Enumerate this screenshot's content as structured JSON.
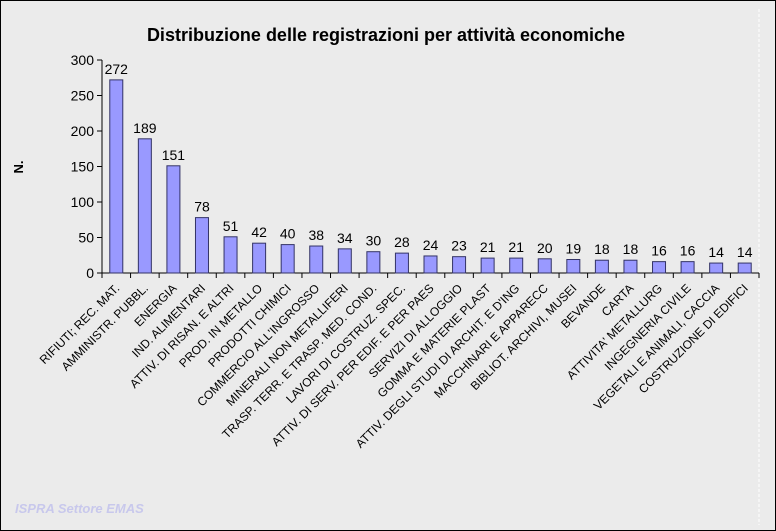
{
  "watermark": "ISPRA Settore EMAS",
  "colors": {
    "bar_fill": "#9999ff",
    "bar_stroke": "#333366",
    "background": "#ebebeb"
  },
  "chart_data": {
    "type": "bar",
    "title": "Distribuzione delle registrazioni per attività economiche",
    "xlabel": "",
    "ylabel": "N.",
    "ylim": [
      0,
      300
    ],
    "yticks": [
      0,
      50,
      100,
      150,
      200,
      250,
      300
    ],
    "grid": false,
    "categories": [
      "RIFIUTI; REC. MAT.",
      "AMMINISTR. PUBBL.",
      "ENERGIA",
      "IND. ALIMENTARI",
      "ATTIV. DI RISAN. E ALTRI",
      "PROD. IN METALLO",
      "PRODOTTI CHIMICI",
      "COMMERCIO ALL'INGROSSO",
      "MINERALI NON METALLIFERI",
      "TRASP. TERR. E TRASP. MED. COND.",
      "LAVORI DI COSTRUZ. SPEC.",
      "ATTIV. DI SERV. PER EDIF. E PER PAES",
      "SERVIZI DI ALLOGGIO",
      "GOMMA E MATERIE PLAST",
      "ATTIV. DEGLI STUDI DI ARCHIT. E D'ING",
      "MACCHINARI E APPARECC",
      "BIBLIOT. ARCHIVI, MUSEI",
      "BEVANDE",
      "CARTA",
      "ATTIVITA' METALLURG",
      "INGEGNERIA CIVILE",
      "VEGETALI E ANIMALI, CACCIA",
      "COSTRUZIONE DI EDIFICI"
    ],
    "values": [
      272,
      189,
      151,
      78,
      51,
      42,
      40,
      38,
      34,
      30,
      28,
      24,
      23,
      21,
      21,
      20,
      19,
      18,
      18,
      16,
      16,
      14,
      14
    ]
  }
}
